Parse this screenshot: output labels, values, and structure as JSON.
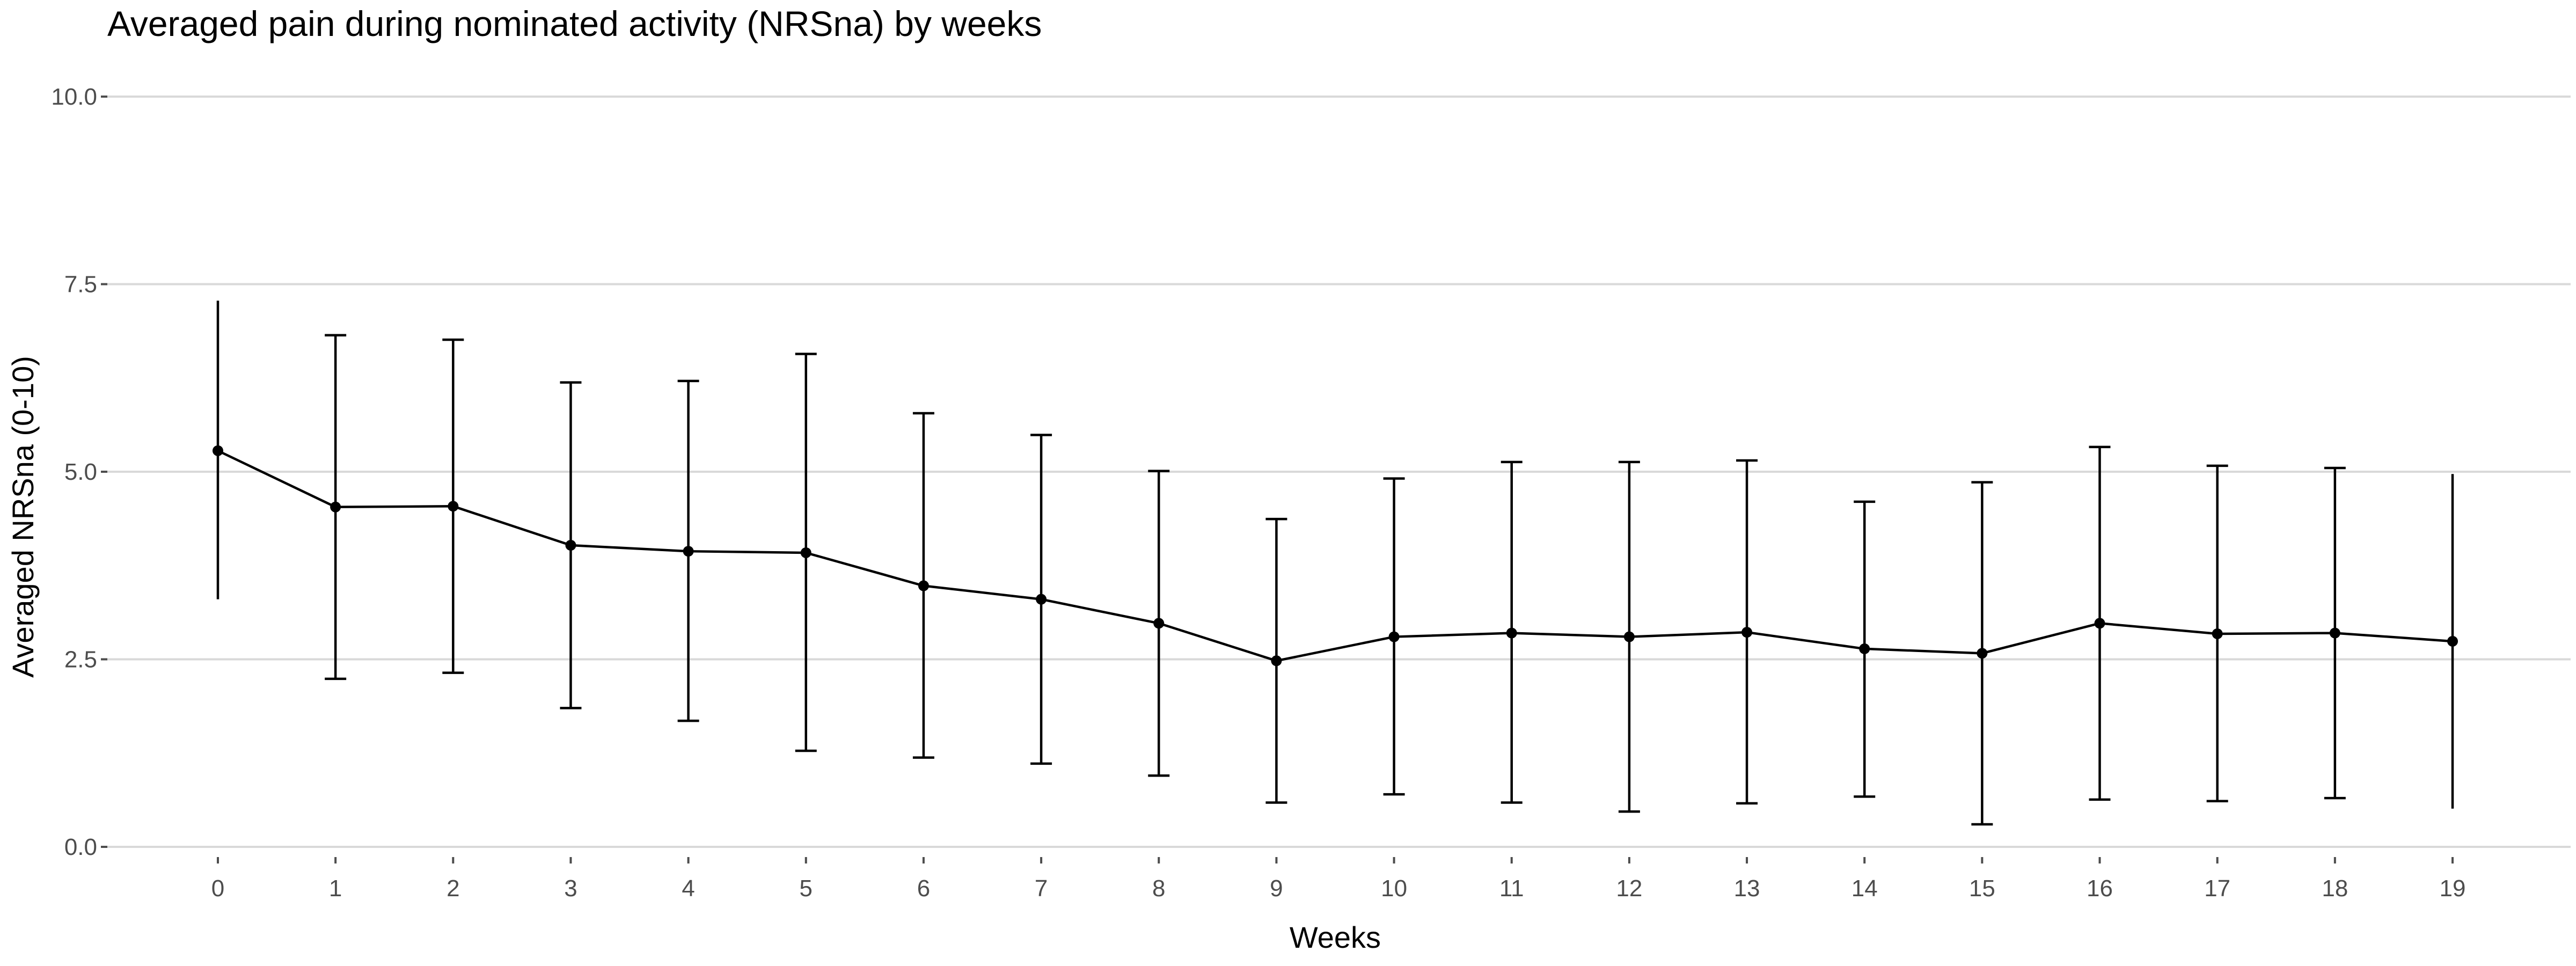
{
  "chart_data": {
    "type": "line",
    "title": "Averaged pain during nominated activity (NRSna) by weeks",
    "xlabel": "Weeks",
    "ylabel": "Averaged NRSna (0-10)",
    "ylim": [
      0,
      10
    ],
    "y_ticks": [
      "0.0",
      "2.5",
      "5.0",
      "7.5",
      "10.0"
    ],
    "y_tick_values": [
      0,
      2.5,
      5,
      7.5,
      10
    ],
    "grid": "horizontal",
    "legend": "none",
    "error_bars": true,
    "colors": {
      "series": "#000000",
      "grid": "#d9d9d9",
      "tick_text": "#4d4d4d"
    },
    "x": [
      "0",
      "1",
      "2",
      "3",
      "4",
      "5",
      "6",
      "7",
      "8",
      "9",
      "10",
      "11",
      "12",
      "13",
      "14",
      "15",
      "16",
      "17",
      "18",
      "19"
    ],
    "values": [
      5.28,
      4.53,
      4.54,
      4.02,
      3.94,
      3.92,
      3.48,
      3.3,
      2.98,
      2.48,
      2.8,
      2.85,
      2.8,
      2.86,
      2.64,
      2.58,
      2.98,
      2.84,
      2.85,
      2.74
    ],
    "upper": [
      7.28,
      6.82,
      6.76,
      6.19,
      6.21,
      6.57,
      5.78,
      5.49,
      5.01,
      4.37,
      4.91,
      5.13,
      5.13,
      5.15,
      4.6,
      4.86,
      5.33,
      5.08,
      5.05,
      4.97
    ],
    "lower": [
      3.3,
      2.24,
      2.32,
      1.85,
      1.68,
      1.28,
      1.19,
      1.11,
      0.95,
      0.59,
      0.7,
      0.59,
      0.47,
      0.58,
      0.67,
      0.3,
      0.63,
      0.61,
      0.65,
      0.51
    ]
  }
}
